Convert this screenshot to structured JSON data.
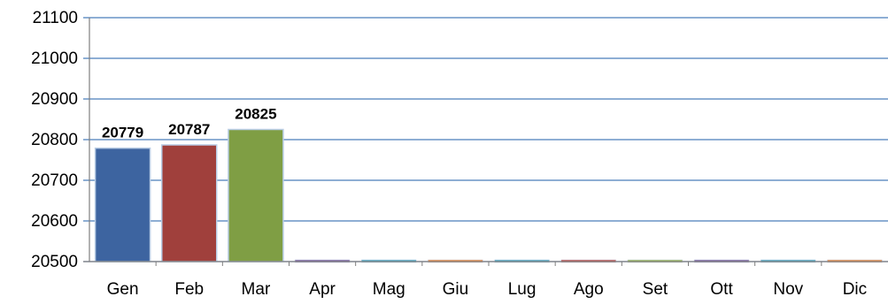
{
  "chart_data": {
    "type": "bar",
    "categories": [
      "Gen",
      "Feb",
      "Mar",
      "Apr",
      "Mag",
      "Giu",
      "Lug",
      "Ago",
      "Set",
      "Ott",
      "Nov",
      "Dic"
    ],
    "values": [
      20779,
      20787,
      20825,
      null,
      null,
      null,
      null,
      null,
      null,
      null,
      null,
      null
    ],
    "data_labels": [
      "20779",
      "20787",
      "20825",
      "",
      "",
      "",
      "",
      "",
      "",
      "",
      "",
      ""
    ],
    "colors": [
      "#4472C4",
      "#C0504D",
      "#9BBB59",
      "#8064A2",
      "#4BACC6",
      "#F79646",
      "#4BACC6",
      "#C0504D",
      "#9BBB59",
      "#8064A2",
      "#4BACC6",
      "#F79646"
    ],
    "bar_fills": [
      "#3d64a0",
      "#a0403c",
      "#7f9e44",
      "#7a5fa0",
      "#4aa8c4",
      "#ec8a40",
      "#4aa8c4",
      "#c0504d",
      "#9bbb59",
      "#7a5fa0",
      "#4aa8c4",
      "#ec8a40"
    ],
    "yticks": [
      "20500",
      "20600",
      "20700",
      "20800",
      "20900",
      "21000",
      "21100"
    ],
    "ylim": [
      20500,
      21100
    ],
    "grid": true,
    "grid_color": "#4a7ebb",
    "title": "",
    "xlabel": "",
    "ylabel": ""
  }
}
